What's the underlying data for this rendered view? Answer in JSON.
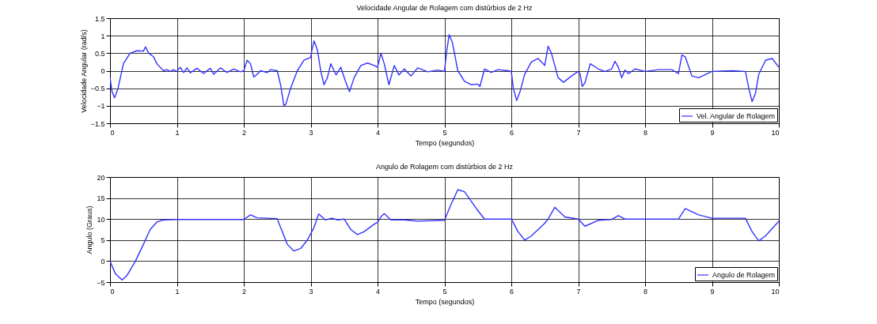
{
  "chart_data": [
    {
      "type": "line",
      "title": "Velocidade Angular de Rolagem com distúrbios de 2 Hz",
      "xlabel": "Tempo (segundos)",
      "ylabel": "Velocidade Angular (rad/s)",
      "xlim": [
        0,
        10
      ],
      "xticks": [
        0,
        1,
        2,
        3,
        4,
        5,
        6,
        7,
        8,
        9,
        10
      ],
      "ylim": [
        -1.5,
        1.5
      ],
      "yticks": [
        -1.5,
        -1,
        -0.5,
        0,
        0.5,
        1,
        1.5
      ],
      "grid": true,
      "legend": "bottom right",
      "series": [
        {
          "name": "Vel. Angular de Rolagem",
          "color": "#3333ff",
          "x": [
            0,
            0.03,
            0.07,
            0.12,
            0.2,
            0.3,
            0.4,
            0.5,
            0.53,
            0.58,
            0.65,
            0.7,
            0.8,
            0.85,
            0.9,
            0.95,
            1.0,
            1.05,
            1.1,
            1.15,
            1.2,
            1.3,
            1.4,
            1.5,
            1.55,
            1.65,
            1.75,
            1.85,
            1.95,
            2.0,
            2.05,
            2.1,
            2.15,
            2.2,
            2.25,
            2.35,
            2.4,
            2.5,
            2.55,
            2.6,
            2.63,
            2.7,
            2.8,
            2.9,
            3.0,
            3.02,
            3.05,
            3.1,
            3.15,
            3.2,
            3.25,
            3.3,
            3.38,
            3.45,
            3.52,
            3.58,
            3.65,
            3.75,
            3.85,
            3.95,
            4.0,
            4.05,
            4.1,
            4.17,
            4.25,
            4.32,
            4.4,
            4.5,
            4.6,
            4.75,
            4.9,
            5.0,
            5.03,
            5.07,
            5.12,
            5.2,
            5.3,
            5.4,
            5.5,
            5.53,
            5.6,
            5.7,
            5.8,
            5.95,
            6.0,
            6.03,
            6.08,
            6.13,
            6.2,
            6.3,
            6.4,
            6.5,
            6.55,
            6.6,
            6.7,
            6.78,
            6.9,
            7.0,
            7.03,
            7.06,
            7.1,
            7.18,
            7.3,
            7.4,
            7.5,
            7.55,
            7.6,
            7.65,
            7.7,
            7.75,
            7.85,
            8.0,
            8.2,
            8.4,
            8.5,
            8.55,
            8.6,
            8.7,
            8.8,
            9.0,
            9.3,
            9.5,
            9.55,
            9.6,
            9.65,
            9.7,
            9.8,
            9.9,
            10
          ],
          "values": [
            -0.2,
            -0.6,
            -0.77,
            -0.5,
            0.2,
            0.5,
            0.57,
            0.56,
            0.68,
            0.5,
            0.4,
            0.2,
            0.0,
            0.03,
            -0.02,
            0.03,
            -0.02,
            0.1,
            -0.05,
            0.08,
            -0.06,
            0.07,
            -0.08,
            0.07,
            -0.1,
            0.08,
            -0.05,
            0.05,
            -0.03,
            0.0,
            0.3,
            0.2,
            -0.18,
            -0.1,
            0.0,
            -0.05,
            0.03,
            0.0,
            -0.4,
            -1.0,
            -0.95,
            -0.5,
            0.0,
            0.3,
            0.38,
            0.6,
            0.85,
            0.6,
            0.0,
            -0.4,
            -0.2,
            0.2,
            -0.12,
            0.1,
            -0.3,
            -0.6,
            -0.2,
            0.15,
            0.22,
            0.15,
            0.1,
            0.5,
            0.2,
            -0.4,
            0.15,
            -0.12,
            0.05,
            -0.15,
            0.08,
            -0.03,
            0.02,
            -0.02,
            0.5,
            1.03,
            0.8,
            0.0,
            -0.3,
            -0.4,
            -0.38,
            -0.45,
            0.05,
            -0.05,
            0.03,
            0.0,
            -0.02,
            -0.5,
            -0.85,
            -0.6,
            -0.1,
            0.25,
            0.35,
            0.15,
            0.7,
            0.5,
            -0.2,
            -0.33,
            -0.15,
            -0.02,
            -0.1,
            -0.45,
            -0.35,
            0.2,
            0.05,
            -0.02,
            0.05,
            0.27,
            0.1,
            -0.2,
            0.02,
            -0.08,
            0.05,
            -0.02,
            0.03,
            0.03,
            -0.08,
            0.45,
            0.4,
            -0.15,
            -0.2,
            -0.02,
            0.0,
            -0.02,
            -0.5,
            -0.88,
            -0.65,
            -0.1,
            0.3,
            0.35,
            0.1
          ]
        }
      ]
    },
    {
      "type": "line",
      "title": "Angulo de Rolagem com distúrbios de 2 Hz",
      "xlabel": "Tempo (segundos)",
      "ylabel": "Angulo (Graus)",
      "xlim": [
        0,
        10
      ],
      "xticks": [
        0,
        1,
        2,
        3,
        4,
        5,
        6,
        7,
        8,
        9,
        10
      ],
      "ylim": [
        -5,
        20
      ],
      "yticks": [
        -5,
        0,
        5,
        10,
        15,
        20
      ],
      "grid": true,
      "legend": "bottom right",
      "series": [
        {
          "name": "Angulo de Rolagem",
          "color": "#3333ff",
          "x": [
            0,
            0.08,
            0.18,
            0.25,
            0.38,
            0.5,
            0.6,
            0.7,
            0.8,
            1.0,
            1.5,
            2.0,
            2.1,
            2.2,
            2.5,
            2.55,
            2.65,
            2.75,
            2.85,
            2.95,
            3.05,
            3.12,
            3.22,
            3.32,
            3.4,
            3.5,
            3.6,
            3.7,
            3.8,
            3.95,
            4.0,
            4.05,
            4.1,
            4.2,
            4.4,
            4.6,
            5.0,
            5.1,
            5.2,
            5.3,
            5.5,
            5.6,
            6.0,
            6.1,
            6.2,
            6.3,
            6.5,
            6.55,
            6.65,
            6.8,
            7.0,
            7.1,
            7.3,
            7.5,
            7.6,
            7.7,
            8.0,
            8.5,
            8.6,
            8.8,
            9.0,
            9.5,
            9.6,
            9.7,
            9.8,
            10
          ],
          "values": [
            0,
            -3,
            -4.5,
            -3.5,
            0,
            4,
            7.5,
            9.3,
            9.8,
            9.9,
            9.9,
            9.9,
            11,
            10.3,
            10.1,
            8,
            4,
            2.4,
            3,
            5,
            8,
            11.2,
            9.8,
            10.2,
            9.8,
            10,
            7.5,
            6.3,
            7,
            8.8,
            9.2,
            10.5,
            11.3,
            9.8,
            9.8,
            9.5,
            9.7,
            13.5,
            17,
            16.5,
            12,
            10,
            10,
            7,
            5,
            6,
            9,
            10,
            12.8,
            10.5,
            10,
            8.3,
            9.7,
            9.9,
            10.8,
            10,
            10,
            10,
            12.5,
            11,
            10.2,
            10.2,
            7,
            4.8,
            6,
            9.5
          ]
        }
      ]
    }
  ]
}
